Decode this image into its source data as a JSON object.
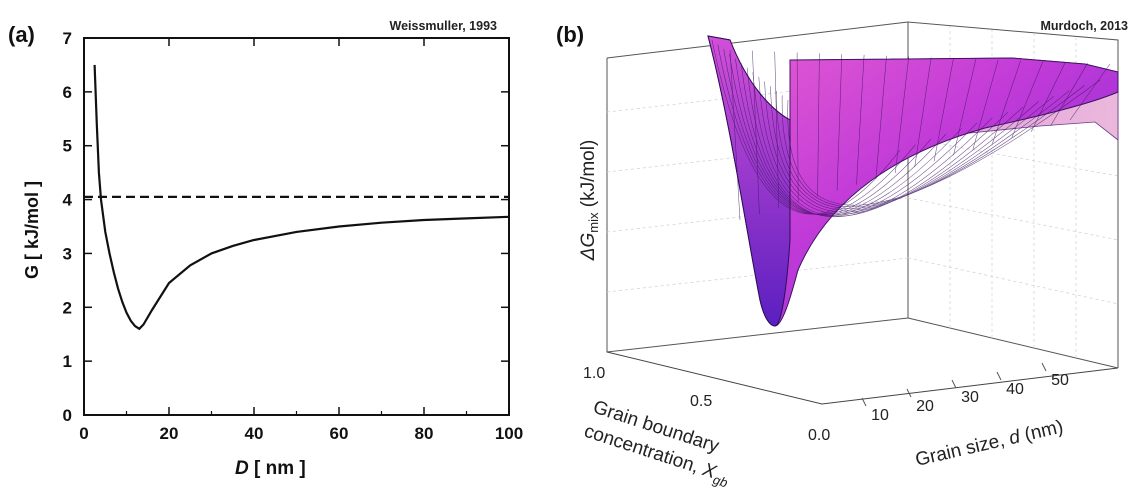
{
  "chart_data": [
    {
      "panel": "(a)",
      "credit": "Weissmuller, 1993",
      "type": "line",
      "xlabel_parts": [
        "D",
        " [ nm ]"
      ],
      "ylabel": "G  [ kJ/mol ]",
      "xlim": [
        0,
        100
      ],
      "ylim": [
        0,
        7
      ],
      "x_ticks": [
        "0",
        "20",
        "40",
        "60",
        "80",
        "100"
      ],
      "y_ticks": [
        "0",
        "1",
        "2",
        "3",
        "4",
        "5",
        "6",
        "7"
      ],
      "grid": false,
      "series": [
        {
          "style": "solid",
          "x": [
            2.5,
            3,
            3.5,
            4,
            5,
            6,
            7,
            8,
            9,
            10,
            11,
            12,
            13,
            14,
            16,
            18,
            20,
            25,
            30,
            35,
            40,
            50,
            60,
            70,
            80,
            90,
            100
          ],
          "y": [
            6.5,
            5.4,
            4.5,
            4.0,
            3.4,
            3.0,
            2.65,
            2.35,
            2.1,
            1.9,
            1.75,
            1.65,
            1.6,
            1.68,
            1.95,
            2.2,
            2.45,
            2.78,
            3.0,
            3.14,
            3.25,
            3.4,
            3.5,
            3.57,
            3.62,
            3.65,
            3.68
          ]
        },
        {
          "style": "dashed",
          "x": [
            0,
            100
          ],
          "y": [
            4.05,
            4.05
          ]
        }
      ]
    },
    {
      "panel": "(b)",
      "credit": "Murdoch, 2013",
      "type": "surface",
      "zlabel_parts": [
        "ΔG",
        "mix",
        " (kJ/mol)"
      ],
      "xlabel_parts": [
        "Grain size, ",
        "d",
        " (nm)"
      ],
      "ylabel_line1": "Grain boundary",
      "ylabel_line2_parts": [
        "concentration, ",
        "X",
        "gb"
      ],
      "x_ticks": [
        "10",
        "20",
        "30",
        "40",
        "50"
      ],
      "y_ticks": [
        "1.0",
        "0.5",
        "0.0"
      ],
      "xlim": [
        0,
        50
      ],
      "ylim": [
        0,
        1
      ],
      "surface_colors": [
        "#6a22c8",
        "#9b2fd6",
        "#c23bd8",
        "#e860d0"
      ],
      "minimum": {
        "d": 7,
        "Xgb": 0.5
      }
    }
  ]
}
